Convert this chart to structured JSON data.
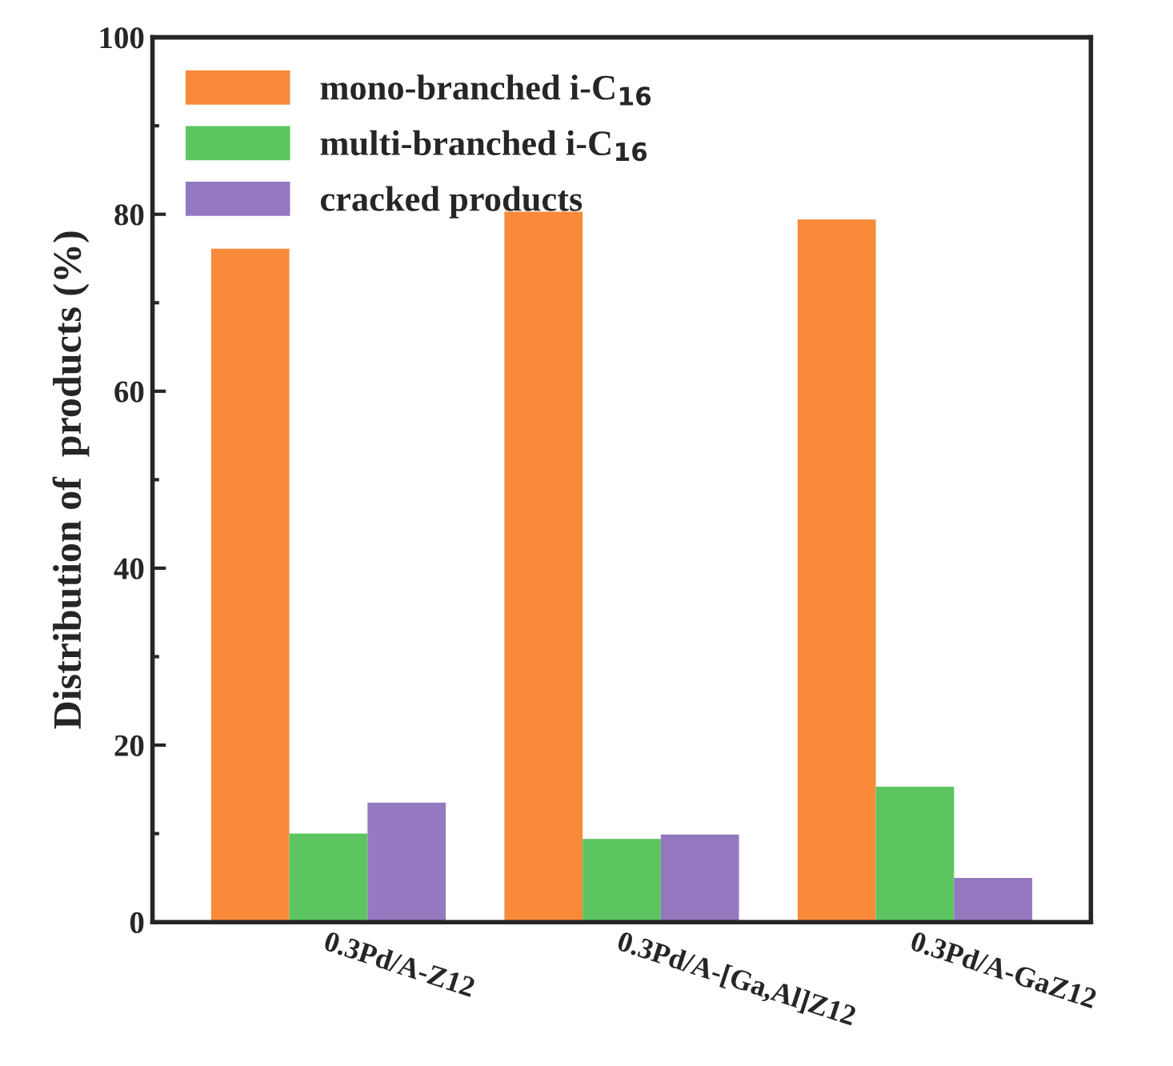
{
  "chart_data": {
    "type": "bar",
    "ylabel": "Distribution of  products (%)",
    "categories": [
      "0.3Pd/A-Z12",
      "0.3Pd/A-[Ga,Al]Z12",
      "0.3Pd/A-GaZ12"
    ],
    "series": [
      {
        "name": "mono-branched i-C$_{16}$",
        "color": "#f98a3a",
        "values": [
          76.1,
          80.3,
          79.4
        ]
      },
      {
        "name": "multi-branched i-C$_{16}$",
        "color": "#5cc560",
        "values": [
          10.0,
          9.4,
          15.3
        ]
      },
      {
        "name": "cracked products",
        "color": "#9478c0",
        "values": [
          13.5,
          9.9,
          5.0
        ]
      }
    ],
    "ylim": [
      0,
      100
    ],
    "yticks": [
      0,
      20,
      40,
      60,
      80,
      100
    ],
    "legend": "top left",
    "grid": false
  }
}
